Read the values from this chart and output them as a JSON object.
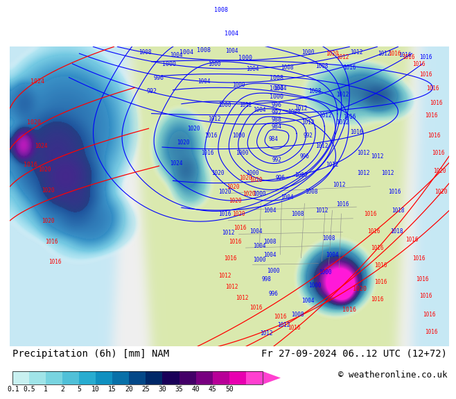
{
  "title_left": "Precipitation (6h) [mm] NAM",
  "title_right": "Fr 27-09-2024 06..12 UTC (12+72)",
  "copyright": "© weatheronline.co.uk",
  "colorbar_levels": [
    0.1,
    0.5,
    1,
    2,
    5,
    10,
    15,
    20,
    25,
    30,
    35,
    40,
    45,
    50
  ],
  "colorbar_colors": [
    "#c8f0f0",
    "#a0e4e8",
    "#78d4e0",
    "#50c0d8",
    "#28acd0",
    "#1090c0",
    "#0870a8",
    "#044888",
    "#002868",
    "#1a0058",
    "#440068",
    "#780080",
    "#b80098",
    "#e800b0",
    "#ff40d0"
  ],
  "ocean_color": "#c8e8f4",
  "land_color": "#d8e8b0",
  "bg_white": "#f0f0f0",
  "text_color": "#000000",
  "font_size_title": 10,
  "font_size_tick": 8,
  "font_size_copyright": 9
}
